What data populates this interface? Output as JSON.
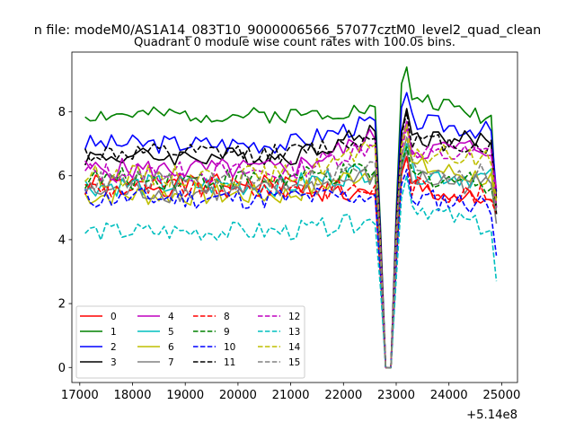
{
  "chart_data": {
    "type": "line",
    "suptitle": "n file: modeM0/AS1A14_083T10_9000006566_57077cztM0_level2_quad_clean",
    "title": "Quadrant 0 module wise count rates with 100.0s bins.",
    "xlabel": "",
    "ylabel": "",
    "x_offset_label": "+5.14e8",
    "xlim": [
      16850,
      25300
    ],
    "ylim": [
      -0.47,
      9.87
    ],
    "xticks": [
      17000,
      18000,
      19000,
      20000,
      21000,
      22000,
      23000,
      24000,
      25000
    ],
    "xtick_labels": [
      "17000",
      "18000",
      "19000",
      "20000",
      "21000",
      "22000",
      "23000",
      "24000",
      "25000"
    ],
    "yticks": [
      0,
      2,
      4,
      6,
      8
    ],
    "ytick_labels": [
      "0",
      "2",
      "4",
      "6",
      "8"
    ],
    "x_start": 17100,
    "x_step": 100,
    "gap": {
      "start": 22700,
      "end": 23300
    },
    "legend_position": "lower-left",
    "series": [
      {
        "name": "0",
        "color": "#ff0000",
        "style": "solid",
        "level": 5.7,
        "pre_dip": 5.3,
        "peak": 6.6,
        "end": 5.0,
        "amp": 0.35,
        "seed": 1
      },
      {
        "name": "1",
        "color": "#008000",
        "style": "solid",
        "level": 7.9,
        "pre_dip": 8.1,
        "peak": 9.4,
        "end": 5.0,
        "amp": 0.25,
        "seed": 2
      },
      {
        "name": "2",
        "color": "#0000ff",
        "style": "solid",
        "level": 7.0,
        "pre_dip": 7.7,
        "peak": 8.6,
        "end": 5.5,
        "amp": 0.3,
        "seed": 3
      },
      {
        "name": "3",
        "color": "#000000",
        "style": "solid",
        "level": 6.6,
        "pre_dip": 7.4,
        "peak": 8.1,
        "end": 5.3,
        "amp": 0.3,
        "seed": 4
      },
      {
        "name": "4",
        "color": "#bf00bf",
        "style": "solid",
        "level": 6.2,
        "pre_dip": 7.2,
        "peak": 7.7,
        "end": 5.6,
        "amp": 0.35,
        "seed": 5
      },
      {
        "name": "5",
        "color": "#00bfbf",
        "style": "solid",
        "level": 5.7,
        "pre_dip": 6.2,
        "peak": 7.0,
        "end": 4.8,
        "amp": 0.35,
        "seed": 6
      },
      {
        "name": "6",
        "color": "#bfbf00",
        "style": "solid",
        "level": 5.4,
        "pre_dip": 6.2,
        "peak": 7.2,
        "end": 4.8,
        "amp": 0.35,
        "seed": 7
      },
      {
        "name": "7",
        "color": "#808080",
        "style": "solid",
        "level": 5.5,
        "pre_dip": 6.0,
        "peak": 6.8,
        "end": 4.5,
        "amp": 0.35,
        "seed": 8
      },
      {
        "name": "8",
        "color": "#ff0000",
        "style": "dashed",
        "level": 5.6,
        "pre_dip": 5.6,
        "peak": 6.6,
        "end": 4.8,
        "amp": 0.35,
        "seed": 9
      },
      {
        "name": "9",
        "color": "#008000",
        "style": "dashed",
        "level": 5.9,
        "pre_dip": 6.1,
        "peak": 6.9,
        "end": 4.9,
        "amp": 0.35,
        "seed": 10
      },
      {
        "name": "10",
        "color": "#0000ff",
        "style": "dashed",
        "level": 5.3,
        "pre_dip": 5.4,
        "peak": 6.2,
        "end": 3.5,
        "amp": 0.35,
        "seed": 11
      },
      {
        "name": "11",
        "color": "#000000",
        "style": "dashed",
        "level": 6.7,
        "pre_dip": 7.2,
        "peak": 8.0,
        "end": 4.8,
        "amp": 0.3,
        "seed": 12
      },
      {
        "name": "12",
        "color": "#bf00bf",
        "style": "dashed",
        "level": 6.1,
        "pre_dip": 7.0,
        "peak": 7.5,
        "end": 5.0,
        "amp": 0.35,
        "seed": 13
      },
      {
        "name": "13",
        "color": "#00bfbf",
        "style": "dashed",
        "level": 4.25,
        "pre_dip": 4.6,
        "peak": 6.0,
        "end": 2.7,
        "amp": 0.3,
        "seed": 14
      },
      {
        "name": "14",
        "color": "#bfbf00",
        "style": "dashed",
        "level": 6.0,
        "pre_dip": 6.8,
        "peak": 7.6,
        "end": 5.2,
        "amp": 0.35,
        "seed": 15
      },
      {
        "name": "15",
        "color": "#808080",
        "style": "dashed",
        "level": 5.8,
        "pre_dip": 6.3,
        "peak": 7.2,
        "end": 4.9,
        "amp": 0.35,
        "seed": 16
      }
    ]
  }
}
